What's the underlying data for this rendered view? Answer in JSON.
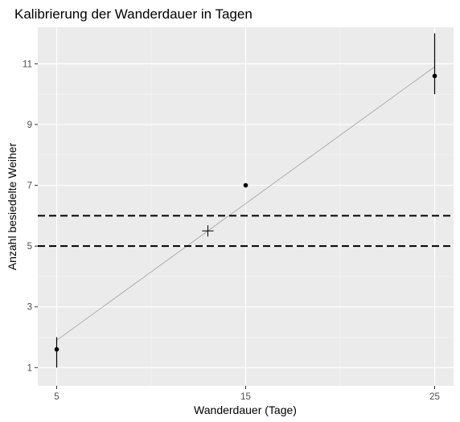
{
  "chart_data": {
    "type": "scatter",
    "title": "Kalibrierung der Wanderdauer in Tagen",
    "xlabel": "Wanderdauer (Tage)",
    "ylabel": "Anzahl besiedelte Weiher",
    "xlim": [
      4.0,
      26.0
    ],
    "ylim": [
      0.4,
      12.2
    ],
    "xticks": [
      5,
      15,
      25
    ],
    "yticks": [
      1,
      3,
      5,
      7,
      9,
      11
    ],
    "grid": true,
    "background": "#ebebeb",
    "points": [
      {
        "x": 5,
        "y": 1.6,
        "ymin": 1.0,
        "ymax": 2.0
      },
      {
        "x": 15,
        "y": 7.0,
        "ymin": 7.0,
        "ymax": 7.0
      },
      {
        "x": 25,
        "y": 10.6,
        "ymin": 10.0,
        "ymax": 12.0
      }
    ],
    "fit_line": {
      "x": [
        5,
        25
      ],
      "y": [
        1.9,
        10.9
      ],
      "color": "#a0a0a0"
    },
    "hlines": [
      5,
      6
    ],
    "estimate": {
      "x": 13.0,
      "y": 5.5,
      "marker": "plus"
    }
  }
}
